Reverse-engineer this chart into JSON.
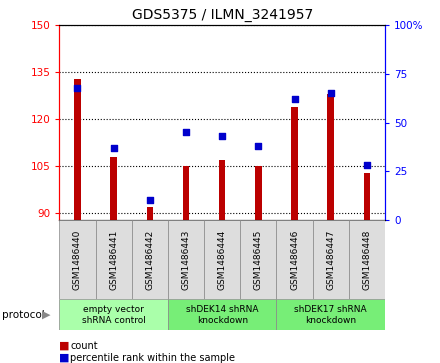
{
  "title": "GDS5375 / ILMN_3241957",
  "samples": [
    "GSM1486440",
    "GSM1486441",
    "GSM1486442",
    "GSM1486443",
    "GSM1486444",
    "GSM1486445",
    "GSM1486446",
    "GSM1486447",
    "GSM1486448"
  ],
  "counts": [
    133,
    108,
    92,
    105,
    107,
    105,
    124,
    128,
    103
  ],
  "percentiles": [
    68,
    37,
    10,
    45,
    43,
    38,
    62,
    65,
    28
  ],
  "ylim_left": [
    88,
    150
  ],
  "ylim_right": [
    0,
    100
  ],
  "yticks_left": [
    90,
    105,
    120,
    135,
    150
  ],
  "yticks_right": [
    0,
    25,
    50,
    75,
    100
  ],
  "bar_color": "#bb0000",
  "dot_color": "#0000cc",
  "bar_bottom": 88,
  "bar_width": 0.18,
  "group_ranges": [
    [
      0,
      2
    ],
    [
      3,
      5
    ],
    [
      6,
      8
    ]
  ],
  "group_labels": [
    "empty vector\nshRNA control",
    "shDEK14 shRNA\nknockdown",
    "shDEK17 shRNA\nknockdown"
  ],
  "group_colors": [
    "#aaffaa",
    "#77ee77",
    "#77ee77"
  ],
  "legend_count_color": "#bb0000",
  "legend_pct_color": "#0000cc"
}
